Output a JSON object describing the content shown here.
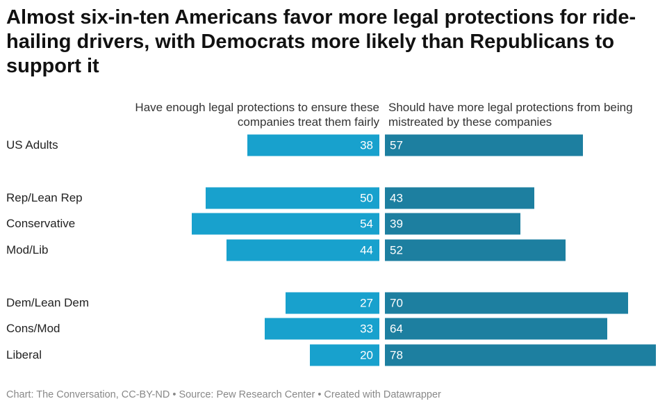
{
  "title": "Almost six-in-ten Americans favor more legal protections for ride-hailing drivers, with Democrats more likely than Republicans to support it",
  "footer": "Chart: The Conversation, CC-BY-ND • Source: Pew Research Center • Created with Datawrapper",
  "chart_data": {
    "type": "bar",
    "orientation": "horizontal-diverging",
    "categories": [
      "US Adults",
      "Rep/Lean Rep",
      "Conservative",
      "Mod/Lib",
      "Dem/Lean Dem",
      "Cons/Mod",
      "Liberal"
    ],
    "series": [
      {
        "name": "Have enough legal protections to ensure these companies treat them fairly",
        "color": "#18a1cd",
        "values": [
          38,
          50,
          54,
          44,
          27,
          33,
          20
        ]
      },
      {
        "name": "Should have more legal protections from being mistreated by these companies",
        "color": "#1d7fa0",
        "values": [
          57,
          43,
          39,
          52,
          70,
          64,
          78
        ]
      }
    ],
    "groups": [
      [
        "US Adults"
      ],
      [
        "Rep/Lean Rep",
        "Conservative",
        "Mod/Lib"
      ],
      [
        "Dem/Lean Dem",
        "Cons/Mod",
        "Liberal"
      ]
    ]
  }
}
